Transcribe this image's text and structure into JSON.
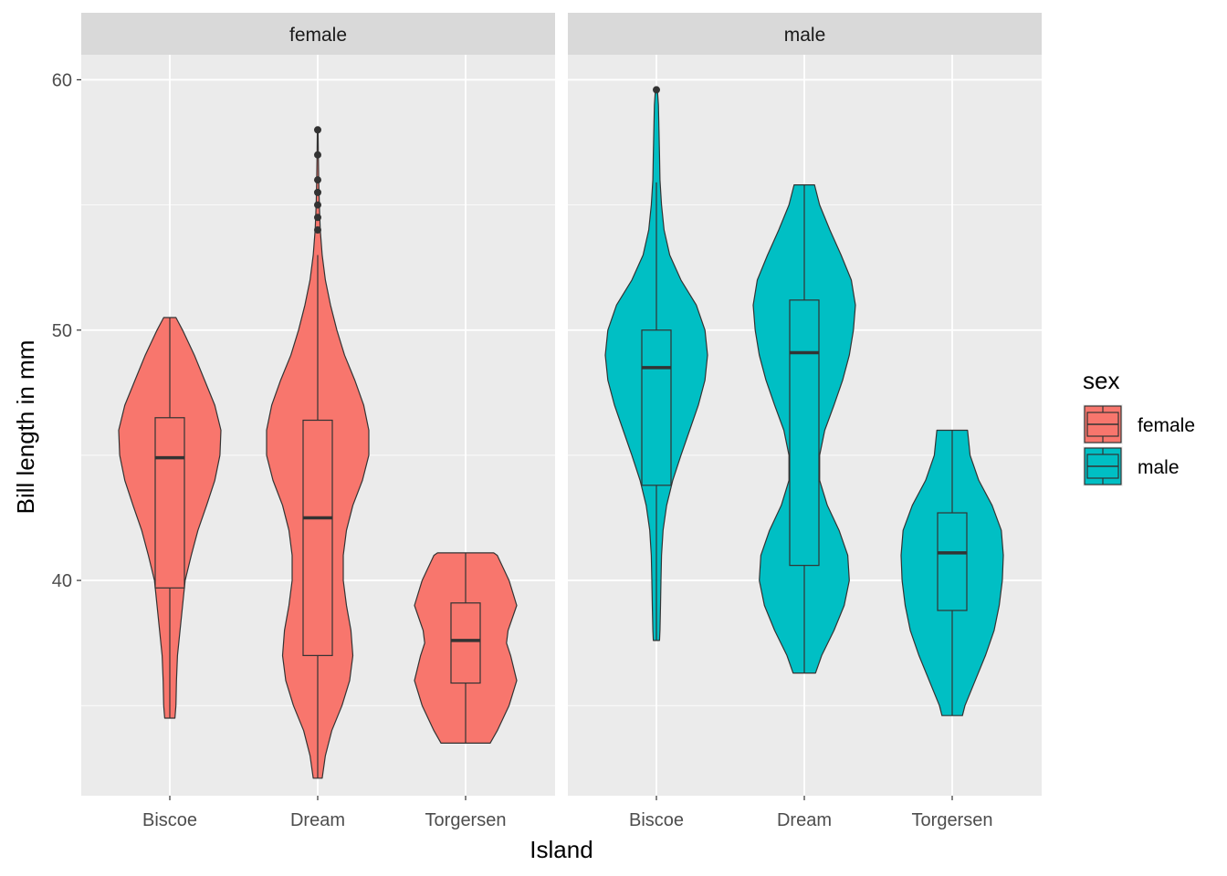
{
  "chart_data": {
    "type": "violin",
    "xlabel": "Island",
    "ylabel": "Bill length in mm",
    "ylim": [
      31.4,
      61.0
    ],
    "yticks": [
      40,
      50,
      60
    ],
    "ytick_labels": [
      "40",
      "50",
      "60"
    ],
    "categories": [
      "Biscoe",
      "Dream",
      "Torgersen"
    ],
    "grid": true,
    "facets": [
      "female",
      "male"
    ],
    "legend": {
      "title": "sex",
      "position": "right",
      "entries": [
        {
          "label": "female",
          "color": "#F8766D"
        },
        {
          "label": "male",
          "color": "#00BFC4"
        }
      ]
    },
    "series": [
      {
        "facet": "female",
        "color": "#F8766D",
        "groups": [
          {
            "island": "Biscoe",
            "box": {
              "min": 34.5,
              "q1": 39.7,
              "median": 44.9,
              "q3": 46.5,
              "max": 50.5
            },
            "outliers": [],
            "density": [
              [
                34.5,
                0.1
              ],
              [
                35,
                0.12
              ],
              [
                36,
                0.13
              ],
              [
                37,
                0.15
              ],
              [
                38,
                0.2
              ],
              [
                39,
                0.25
              ],
              [
                40,
                0.3
              ],
              [
                41,
                0.42
              ],
              [
                42,
                0.55
              ],
              [
                43,
                0.72
              ],
              [
                44,
                0.88
              ],
              [
                45,
                0.98
              ],
              [
                46,
                1.0
              ],
              [
                47,
                0.88
              ],
              [
                48,
                0.68
              ],
              [
                49,
                0.48
              ],
              [
                50,
                0.25
              ],
              [
                50.5,
                0.12
              ]
            ]
          },
          {
            "island": "Dream",
            "box": {
              "min": 32.1,
              "q1": 37.0,
              "median": 42.5,
              "q3": 46.4,
              "max": 53.0
            },
            "outliers": [
              54.0,
              54.5,
              55.0,
              55.5,
              56.0,
              57.0,
              58.0
            ],
            "density": [
              [
                32.1,
                0.07
              ],
              [
                33,
                0.12
              ],
              [
                34,
                0.22
              ],
              [
                35,
                0.38
              ],
              [
                36,
                0.5
              ],
              [
                37,
                0.55
              ],
              [
                38,
                0.52
              ],
              [
                39,
                0.45
              ],
              [
                40,
                0.4
              ],
              [
                41,
                0.4
              ],
              [
                42,
                0.45
              ],
              [
                43,
                0.55
              ],
              [
                44,
                0.7
              ],
              [
                45,
                0.8
              ],
              [
                46,
                0.8
              ],
              [
                47,
                0.72
              ],
              [
                48,
                0.58
              ],
              [
                49,
                0.42
              ],
              [
                50,
                0.3
              ],
              [
                51,
                0.2
              ],
              [
                52,
                0.12
              ],
              [
                53,
                0.07
              ],
              [
                54,
                0.04
              ],
              [
                55,
                0.025
              ],
              [
                56,
                0.015
              ],
              [
                57,
                0.01
              ],
              [
                58,
                0.006
              ]
            ]
          },
          {
            "island": "Torgersen",
            "box": {
              "min": 33.5,
              "q1": 35.9,
              "median": 37.6,
              "q3": 39.1,
              "max": 41.1
            },
            "outliers": [],
            "density": [
              [
                33.5,
                0.48
              ],
              [
                34,
                0.62
              ],
              [
                35,
                0.85
              ],
              [
                36,
                1.0
              ],
              [
                37,
                0.88
              ],
              [
                37.5,
                0.8
              ],
              [
                38,
                0.83
              ],
              [
                39,
                1.0
              ],
              [
                40,
                0.85
              ],
              [
                41,
                0.62
              ],
              [
                41.1,
                0.55
              ]
            ]
          }
        ]
      },
      {
        "facet": "male",
        "color": "#00BFC4",
        "groups": [
          {
            "island": "Biscoe",
            "box": {
              "min": 37.6,
              "q1": 43.8,
              "median": 48.5,
              "q3": 50.0,
              "max": 55.9
            },
            "outliers": [
              59.6
            ],
            "density": [
              [
                37.6,
                0.06
              ],
              [
                38,
                0.07
              ],
              [
                39,
                0.08
              ],
              [
                40,
                0.09
              ],
              [
                41,
                0.1
              ],
              [
                42,
                0.13
              ],
              [
                43,
                0.2
              ],
              [
                44,
                0.32
              ],
              [
                45,
                0.48
              ],
              [
                46,
                0.65
              ],
              [
                47,
                0.82
              ],
              [
                48,
                0.95
              ],
              [
                49,
                1.0
              ],
              [
                50,
                0.95
              ],
              [
                51,
                0.78
              ],
              [
                52,
                0.48
              ],
              [
                53,
                0.26
              ],
              [
                54,
                0.15
              ],
              [
                55,
                0.1
              ],
              [
                56,
                0.07
              ],
              [
                57,
                0.06
              ],
              [
                58,
                0.05
              ],
              [
                59,
                0.04
              ],
              [
                59.6,
                0.02
              ]
            ]
          },
          {
            "island": "Dream",
            "box": {
              "min": 36.3,
              "q1": 40.6,
              "median": 49.1,
              "q3": 51.2,
              "max": 55.8
            },
            "outliers": [],
            "density": [
              [
                36.3,
                0.22
              ],
              [
                37,
                0.34
              ],
              [
                38,
                0.58
              ],
              [
                39,
                0.78
              ],
              [
                40,
                0.88
              ],
              [
                41,
                0.85
              ],
              [
                42,
                0.68
              ],
              [
                43,
                0.45
              ],
              [
                44,
                0.3
              ],
              [
                45,
                0.3
              ],
              [
                46,
                0.4
              ],
              [
                47,
                0.58
              ],
              [
                48,
                0.75
              ],
              [
                49,
                0.88
              ],
              [
                50,
                0.96
              ],
              [
                51,
                1.0
              ],
              [
                52,
                0.92
              ],
              [
                53,
                0.72
              ],
              [
                54,
                0.5
              ],
              [
                55,
                0.3
              ],
              [
                55.8,
                0.2
              ]
            ]
          },
          {
            "island": "Torgersen",
            "box": {
              "min": 34.6,
              "q1": 38.8,
              "median": 41.1,
              "q3": 42.7,
              "max": 46.0
            },
            "outliers": [],
            "density": [
              [
                34.6,
                0.2
              ],
              [
                35,
                0.25
              ],
              [
                36,
                0.45
              ],
              [
                37,
                0.65
              ],
              [
                38,
                0.82
              ],
              [
                39,
                0.92
              ],
              [
                40,
                0.98
              ],
              [
                41,
                1.0
              ],
              [
                42,
                0.96
              ],
              [
                43,
                0.78
              ],
              [
                44,
                0.52
              ],
              [
                45,
                0.35
              ],
              [
                46,
                0.3
              ]
            ]
          }
        ]
      }
    ]
  }
}
